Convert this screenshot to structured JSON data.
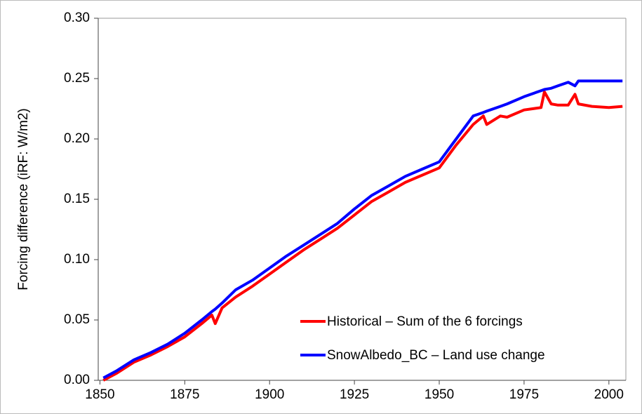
{
  "chart_data": {
    "type": "line",
    "ylabel": "Forcing difference (iRF: W/m2)",
    "x": [
      1851,
      1855,
      1860,
      1865,
      1870,
      1875,
      1880,
      1883,
      1884,
      1886,
      1890,
      1895,
      1900,
      1905,
      1910,
      1915,
      1920,
      1925,
      1930,
      1935,
      1940,
      1945,
      1950,
      1955,
      1960,
      1963,
      1964,
      1968,
      1970,
      1975,
      1980,
      1981,
      1983,
      1985,
      1988,
      1990,
      1991,
      1995,
      2000,
      2004
    ],
    "series": [
      {
        "name": "Historical – Sum of the 6 forcings",
        "color": "#ff0000",
        "values": [
          0.0,
          0.006,
          0.015,
          0.021,
          0.028,
          0.036,
          0.047,
          0.054,
          0.047,
          0.06,
          0.069,
          0.078,
          0.088,
          0.098,
          0.108,
          0.117,
          0.126,
          0.137,
          0.148,
          0.156,
          0.164,
          0.17,
          0.176,
          0.195,
          0.212,
          0.219,
          0.212,
          0.219,
          0.218,
          0.224,
          0.226,
          0.239,
          0.229,
          0.228,
          0.228,
          0.237,
          0.229,
          0.227,
          0.226,
          0.227
        ]
      },
      {
        "name": "SnowAlbedo_BC – Land use change",
        "color": "#0000ff",
        "values": [
          0.002,
          0.008,
          0.017,
          0.023,
          0.03,
          0.039,
          0.05,
          0.057,
          0.059,
          0.064,
          0.075,
          0.083,
          0.093,
          0.103,
          0.112,
          0.121,
          0.13,
          0.142,
          0.153,
          0.161,
          0.169,
          0.175,
          0.181,
          0.2,
          0.219,
          0.222,
          0.223,
          0.227,
          0.229,
          0.235,
          0.24,
          0.241,
          0.242,
          0.244,
          0.247,
          0.244,
          0.248,
          0.248,
          0.248,
          0.248
        ]
      }
    ],
    "xlim": [
      1849.5,
      2005
    ],
    "xticks": [
      1850,
      1875,
      1900,
      1925,
      1950,
      1975,
      2000
    ],
    "ylim": [
      0,
      0.3
    ],
    "yticks": [
      {
        "value": 0,
        "label": "0.00"
      },
      {
        "value": 0.05,
        "label": "0.05"
      },
      {
        "value": 0.1,
        "label": "0.10"
      },
      {
        "value": 0.15,
        "label": "0.15"
      },
      {
        "value": 0.2,
        "label": "0.20"
      },
      {
        "value": 0.25,
        "label": "0.25"
      },
      {
        "value": 0.3,
        "label": "0.30"
      }
    ],
    "legend": "lower right",
    "grid": false
  }
}
